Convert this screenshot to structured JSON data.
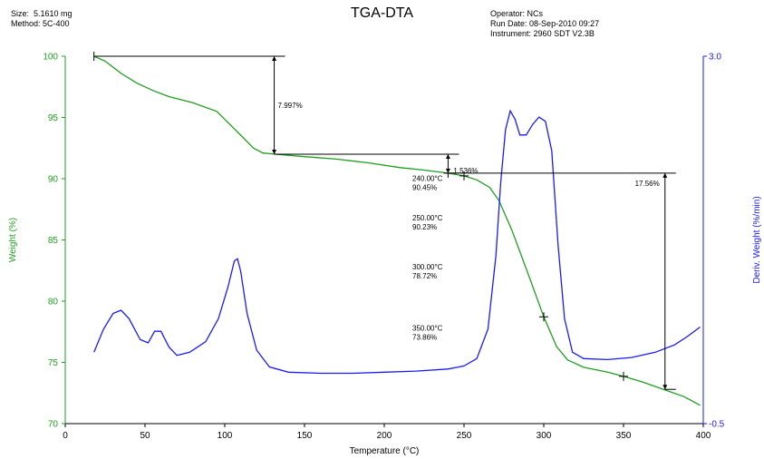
{
  "header": {
    "size_label": "Size:",
    "size_value": "5.1610 mg",
    "method_label": "Method:",
    "method_value": "5C-400",
    "operator_label": "Operator:",
    "operator_value": "NCs",
    "run_date_label": "Run Date:",
    "run_date_value": "08-Sep-2010 09:27",
    "instrument_label": "Instrument:",
    "instrument_value": "2960 SDT V2.3B"
  },
  "colors": {
    "weight": "#1f9e1f",
    "deriv": "#1a1aff",
    "annotation": "#000000"
  },
  "chart_data": {
    "type": "line",
    "title": "TGA-DTA",
    "xlabel": "Temperature (°C)",
    "ylabel": "Weight (%)",
    "y2label": "Deriv. Weight (%/min)",
    "xlim": [
      0,
      400
    ],
    "ylim": [
      70,
      100
    ],
    "y2lim": [
      -0.5,
      3.0
    ],
    "x_ticks": [
      0,
      50,
      100,
      150,
      200,
      250,
      300,
      350,
      400
    ],
    "y_ticks": [
      70,
      75,
      80,
      85,
      90,
      95,
      100
    ],
    "y2_tick_labels": [
      "-0.5",
      "3.0"
    ],
    "series": [
      {
        "axis": "left",
        "points": [
          [
            18,
            100
          ],
          [
            25,
            99.6
          ],
          [
            35,
            98.6
          ],
          [
            45,
            97.8
          ],
          [
            55,
            97.2
          ],
          [
            65,
            96.7
          ],
          [
            80,
            96.2
          ],
          [
            95,
            95.5
          ],
          [
            105,
            94.2
          ],
          [
            112,
            93.3
          ],
          [
            118,
            92.5
          ],
          [
            124,
            92.1
          ],
          [
            132,
            92.0
          ],
          [
            150,
            91.8
          ],
          [
            170,
            91.6
          ],
          [
            190,
            91.3
          ],
          [
            210,
            90.9
          ],
          [
            225,
            90.7
          ],
          [
            240,
            90.45
          ],
          [
            250,
            90.23
          ],
          [
            258,
            89.9
          ],
          [
            266,
            89.3
          ],
          [
            272,
            88.2
          ],
          [
            280,
            85.8
          ],
          [
            290,
            82.3
          ],
          [
            300,
            78.72
          ],
          [
            308,
            76.3
          ],
          [
            315,
            75.2
          ],
          [
            325,
            74.6
          ],
          [
            340,
            74.2
          ],
          [
            350,
            73.86
          ],
          [
            362,
            73.4
          ],
          [
            375,
            72.8
          ],
          [
            388,
            72.2
          ],
          [
            398,
            71.5
          ]
        ]
      },
      {
        "axis": "right",
        "points": [
          [
            18,
            0.18
          ],
          [
            24,
            0.4
          ],
          [
            30,
            0.55
          ],
          [
            35,
            0.58
          ],
          [
            40,
            0.5
          ],
          [
            47,
            0.3
          ],
          [
            52,
            0.27
          ],
          [
            56,
            0.38
          ],
          [
            60,
            0.38
          ],
          [
            65,
            0.23
          ],
          [
            70,
            0.15
          ],
          [
            78,
            0.18
          ],
          [
            88,
            0.28
          ],
          [
            96,
            0.5
          ],
          [
            102,
            0.8
          ],
          [
            106,
            1.05
          ],
          [
            108,
            1.07
          ],
          [
            110,
            0.95
          ],
          [
            114,
            0.55
          ],
          [
            120,
            0.2
          ],
          [
            128,
            0.04
          ],
          [
            140,
            -0.01
          ],
          [
            160,
            -0.02
          ],
          [
            180,
            -0.02
          ],
          [
            200,
            -0.01
          ],
          [
            220,
            0.0
          ],
          [
            240,
            0.02
          ],
          [
            250,
            0.05
          ],
          [
            258,
            0.12
          ],
          [
            265,
            0.4
          ],
          [
            270,
            1.1
          ],
          [
            273,
            1.8
          ],
          [
            276,
            2.3
          ],
          [
            279,
            2.48
          ],
          [
            282,
            2.4
          ],
          [
            285,
            2.25
          ],
          [
            289,
            2.25
          ],
          [
            293,
            2.35
          ],
          [
            297,
            2.42
          ],
          [
            301,
            2.38
          ],
          [
            305,
            2.1
          ],
          [
            309,
            1.2
          ],
          [
            313,
            0.5
          ],
          [
            318,
            0.18
          ],
          [
            325,
            0.12
          ],
          [
            340,
            0.11
          ],
          [
            355,
            0.13
          ],
          [
            370,
            0.18
          ],
          [
            382,
            0.25
          ],
          [
            390,
            0.33
          ],
          [
            398,
            0.42
          ]
        ]
      }
    ],
    "annotations": {
      "steps": [
        {
          "x_start": 18,
          "x_mark": 131,
          "y_top": 100,
          "y_bottom": 92.0,
          "label": "7.997%"
        },
        {
          "x_start": 131,
          "x_mark": 240,
          "y_top": 92.0,
          "y_bottom": 90.45,
          "label": "1.536%"
        },
        {
          "x_start": 240,
          "x_mark": 376,
          "y_top": 90.45,
          "y_bottom": 72.8,
          "label": "17.56%"
        }
      ],
      "markers": [
        {
          "x": 240,
          "y": 90.45,
          "temp": "240.00°C",
          "weight": "90.45%"
        },
        {
          "x": 250,
          "y": 90.23,
          "temp": "250.00°C",
          "weight": "90.23%"
        },
        {
          "x": 300,
          "y": 78.72,
          "temp": "300.00°C",
          "weight": "78.72%"
        },
        {
          "x": 350,
          "y": 73.86,
          "temp": "350.00°C",
          "weight": "73.86%"
        }
      ]
    }
  }
}
